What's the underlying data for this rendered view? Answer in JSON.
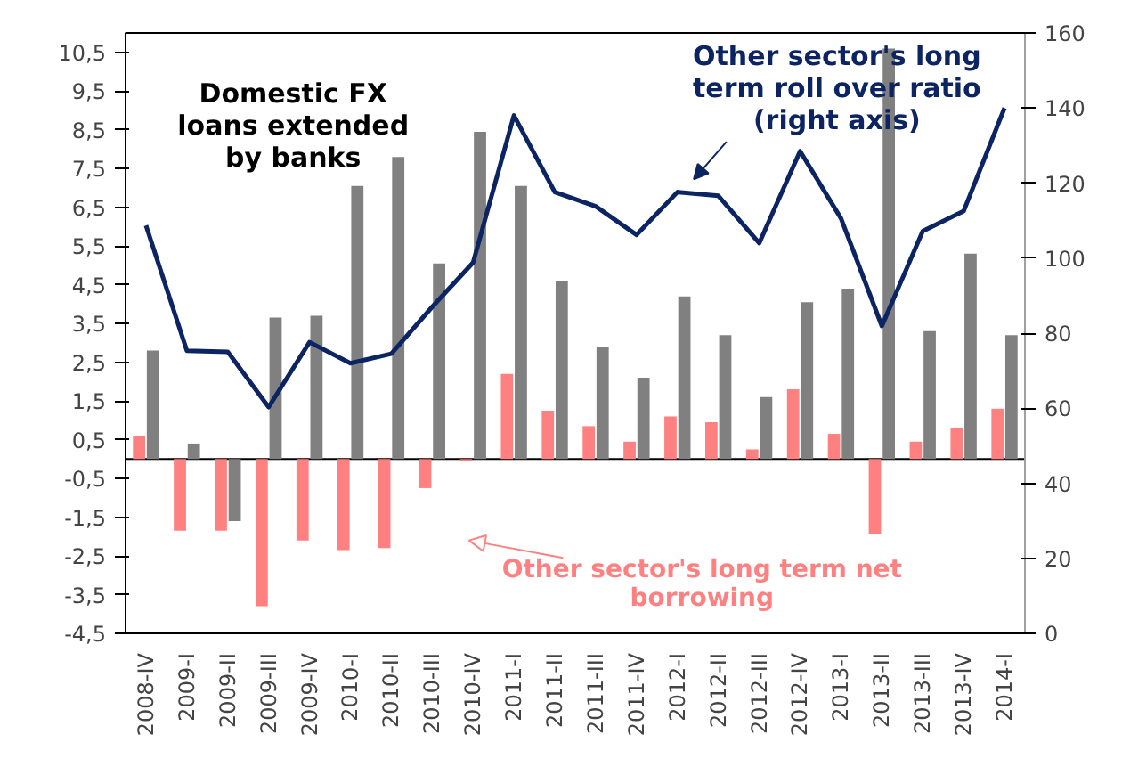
{
  "chart_data": {
    "type": "bar",
    "categories": [
      "2008-IV",
      "2009-I",
      "2009-II",
      "2009-III",
      "2009-IV",
      "2010-I",
      "2010-II",
      "2010-III",
      "2010-IV",
      "2011-I",
      "2011-II",
      "2011-III",
      "2011-IV",
      "2012-I",
      "2012-II",
      "2012-III",
      "2012-IV",
      "2013-I",
      "2013-II",
      "2013-III",
      "2013-IV",
      "2014-I"
    ],
    "series": [
      {
        "name": "Other sector's long term net borrowing",
        "color": "#ff8080",
        "values": [
          0.6,
          -1.85,
          -1.85,
          -3.8,
          -2.1,
          -2.35,
          -2.3,
          -0.75,
          -0.05,
          2.2,
          1.25,
          0.85,
          0.45,
          1.1,
          0.95,
          0.25,
          1.8,
          0.65,
          -1.95,
          0.45,
          0.8,
          1.3
        ]
      },
      {
        "name": "Domestic FX loans extended by banks",
        "color": "#808080",
        "values": [
          2.8,
          0.4,
          -1.6,
          3.65,
          3.7,
          7.05,
          7.8,
          5.05,
          8.45,
          7.05,
          4.6,
          2.9,
          2.1,
          4.2,
          3.2,
          1.6,
          4.05,
          4.4,
          10.6,
          3.3,
          5.3,
          3.2
        ]
      },
      {
        "name": "Other sector's long term roll over ratio (right axis)",
        "type": "line",
        "axis": "y2",
        "color": "#0d2463",
        "values": [
          108.7,
          75.3,
          75,
          60.3,
          77.6,
          72,
          74.5,
          87,
          98.8,
          138,
          117.6,
          113.8,
          106.2,
          117.6,
          116.6,
          104,
          128.5,
          110.6,
          81.9,
          107.2,
          112.5,
          140
        ]
      }
    ],
    "ylim": [
      -4.5,
      11
    ],
    "yticks": [
      {
        "value": -4.5,
        "label": "-4,5"
      },
      {
        "value": -3.5,
        "label": "-3,5"
      },
      {
        "value": -2.5,
        "label": "-2,5"
      },
      {
        "value": -1.5,
        "label": "-1,5"
      },
      {
        "value": -0.5,
        "label": "-0,5"
      },
      {
        "value": 0.5,
        "label": "0,5"
      },
      {
        "value": 1.5,
        "label": "1,5"
      },
      {
        "value": 2.5,
        "label": "2,5"
      },
      {
        "value": 3.5,
        "label": "3,5"
      },
      {
        "value": 4.5,
        "label": "4,5"
      },
      {
        "value": 5.5,
        "label": "5,5"
      },
      {
        "value": 6.5,
        "label": "6,5"
      },
      {
        "value": 7.5,
        "label": "7,5"
      },
      {
        "value": 8.5,
        "label": "8,5"
      },
      {
        "value": 9.5,
        "label": "9,5"
      },
      {
        "value": 10.5,
        "label": "10,5"
      }
    ],
    "y2lim": [
      0,
      160
    ],
    "y2ticks": [
      0,
      20,
      40,
      60,
      80,
      100,
      120,
      140,
      160
    ],
    "ref_lines": [
      {
        "axis": "y",
        "value": 0,
        "color": "#000000"
      }
    ],
    "grid": false
  }
}
